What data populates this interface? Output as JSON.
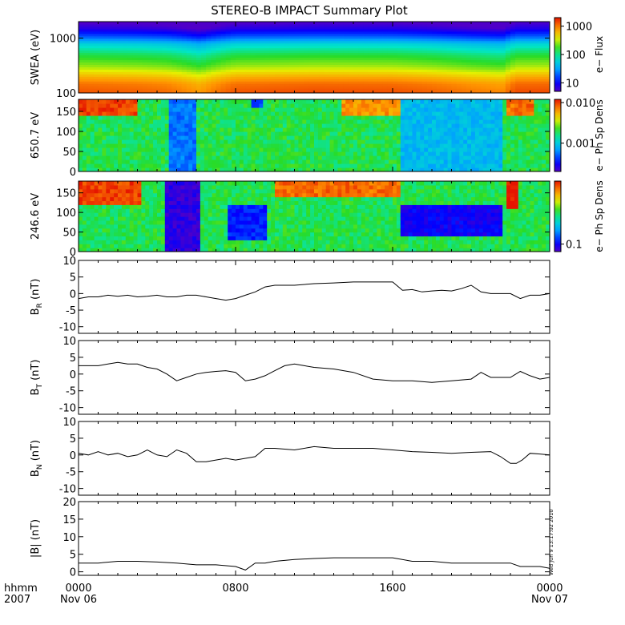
{
  "chart_data": {
    "title": "STEREO-B IMPACT Summary Plot",
    "x_axis": {
      "row_label": "hhmm",
      "year_label": "2007",
      "ticks": [
        {
          "time_hours": 0,
          "hhmm": "0000",
          "date": "Nov 06"
        },
        {
          "time_hours": 8,
          "hhmm": "0800",
          "date": ""
        },
        {
          "time_hours": 16,
          "hhmm": "1600",
          "date": ""
        },
        {
          "time_hours": 24,
          "hhmm": "0000",
          "date": "Nov 07"
        }
      ],
      "range_hours": [
        0,
        24
      ]
    },
    "timestamp": "Wed Jun 9 13:17:02 2010",
    "panels": [
      {
        "id": "swea",
        "type": "heatmap",
        "ylabel": "SWEA (eV)",
        "yscale": "log",
        "ylim": [
          100,
          2000
        ],
        "yticks": [
          {
            "v": 100,
            "label": "100"
          },
          {
            "v": 1000,
            "label": "1000"
          }
        ],
        "colorbar": {
          "label": "e− Flux",
          "scale": "log",
          "range": [
            5,
            2000
          ],
          "ticks": [
            {
              "v": 10,
              "label": "10"
            },
            {
              "v": 100,
              "label": "100"
            },
            {
              "v": 1000,
              "label": "1000"
            }
          ]
        },
        "mean_energy_profile": {
          "energy_ev": [
            100,
            150,
            200,
            300,
            500,
            800,
            1000,
            1500,
            2000
          ],
          "flux": [
            1400,
            1100,
            700,
            300,
            150,
            60,
            25,
            8,
            5
          ]
        },
        "time_intensity_factor": {
          "time_hours": [
            0,
            3,
            4.5,
            5.6,
            6.2,
            8,
            12,
            16,
            18,
            20,
            21.6,
            22.3,
            24
          ],
          "factor": [
            0.9,
            0.8,
            0.7,
            0.5,
            0.4,
            0.9,
            1.0,
            0.95,
            0.8,
            0.6,
            0.5,
            1.0,
            1.0
          ]
        }
      },
      {
        "id": "pad650",
        "type": "heatmap",
        "ylabel": "650.7 eV",
        "ylim": [
          0,
          180
        ],
        "yticks": [
          0,
          50,
          100,
          150
        ],
        "colorbar": {
          "label": "e− Ph Sp Dens",
          "scale": "log",
          "range": [
            0.0002,
            0.012
          ],
          "ticks": [
            {
              "v": 0.001,
              "label": "0.001"
            },
            {
              "v": 0.01,
              "label": "0.010"
            }
          ]
        },
        "features": [
          {
            "t0": 0,
            "t1": 3.0,
            "p0": 140,
            "p1": 180,
            "level": 0.95
          },
          {
            "t0": 4.6,
            "t1": 6.0,
            "p0": 0,
            "p1": 180,
            "level": 0.25
          },
          {
            "t0": 8.8,
            "t1": 9.3,
            "p0": 165,
            "p1": 180,
            "level": 0.2
          },
          {
            "t0": 13.5,
            "t1": 16.3,
            "p0": 140,
            "p1": 180,
            "level": 0.85
          },
          {
            "t0": 16.4,
            "t1": 21.5,
            "p0": 0,
            "p1": 180,
            "level": 0.35
          },
          {
            "t0": 21.9,
            "t1": 23.2,
            "p0": 140,
            "p1": 180,
            "level": 0.9
          }
        ]
      },
      {
        "id": "pad246",
        "type": "heatmap",
        "ylabel": "246.6 eV",
        "ylim": [
          0,
          180
        ],
        "yticks": [
          0,
          50,
          100,
          150
        ],
        "colorbar": {
          "label": "e− Ph Sp Dens",
          "scale": "log",
          "range": [
            0.07,
            2.0
          ],
          "ticks": [
            {
              "v": 0.1,
              "label": "0.1"
            }
          ]
        },
        "features": [
          {
            "t0": 0,
            "t1": 3.2,
            "p0": 120,
            "p1": 180,
            "level": 0.95
          },
          {
            "t0": 4.4,
            "t1": 6.2,
            "p0": 0,
            "p1": 180,
            "level": 0.05
          },
          {
            "t0": 7.6,
            "t1": 9.6,
            "p0": 30,
            "p1": 120,
            "level": 0.15
          },
          {
            "t0": 10.0,
            "t1": 16.3,
            "p0": 140,
            "p1": 180,
            "level": 0.9
          },
          {
            "t0": 16.4,
            "t1": 21.5,
            "p0": 40,
            "p1": 120,
            "level": 0.1
          },
          {
            "t0": 21.8,
            "t1": 22.4,
            "p0": 110,
            "p1": 180,
            "level": 1.0
          }
        ]
      },
      {
        "id": "br",
        "type": "line",
        "ylabel": "B",
        "ylabel_sub": "R",
        "ylabel_unit": "(nT)",
        "ylim": [
          -12,
          10
        ],
        "yticks": [
          -10,
          -5,
          0,
          5,
          10
        ],
        "x": [
          0,
          0.5,
          1,
          1.5,
          2,
          2.5,
          3,
          3.5,
          4,
          4.5,
          5,
          5.5,
          6,
          6.5,
          7,
          7.5,
          8,
          8.5,
          9,
          9.5,
          10,
          11,
          12,
          13,
          14,
          15,
          16,
          16.5,
          17,
          17.5,
          18,
          18.5,
          19,
          19.5,
          20,
          20.5,
          21,
          21.5,
          22,
          22.5,
          23,
          23.5,
          24
        ],
        "y": [
          -1.5,
          -1,
          -1,
          -0.5,
          -0.8,
          -0.5,
          -1,
          -0.8,
          -0.5,
          -1,
          -1,
          -0.5,
          -0.5,
          -1,
          -1.5,
          -2,
          -1.5,
          -0.5,
          0.5,
          2,
          2.5,
          2.5,
          3,
          3.2,
          3.5,
          3.5,
          3.5,
          1,
          1.2,
          0.5,
          0.8,
          1,
          0.8,
          1.5,
          2.5,
          0.5,
          0,
          0,
          0,
          -1.5,
          -0.5,
          -0.5,
          0
        ]
      },
      {
        "id": "bt",
        "type": "line",
        "ylabel": "B",
        "ylabel_sub": "T",
        "ylabel_unit": "(nT)",
        "ylim": [
          -12,
          10
        ],
        "yticks": [
          -10,
          -5,
          0,
          5,
          10
        ],
        "x": [
          0,
          0.5,
          1,
          1.5,
          2,
          2.5,
          3,
          3.5,
          4,
          4.5,
          5,
          5.5,
          6,
          6.5,
          7,
          7.5,
          8,
          8.5,
          9,
          9.5,
          10,
          10.5,
          11,
          11.5,
          12,
          13,
          14,
          15,
          16,
          17,
          18,
          19,
          20,
          20.5,
          21,
          21.5,
          22,
          22.5,
          23,
          23.5,
          24
        ],
        "y": [
          2.5,
          2.5,
          2.5,
          3,
          3.5,
          3,
          3,
          2,
          1.5,
          0,
          -2,
          -1,
          0,
          0.5,
          0.8,
          1,
          0.5,
          -2,
          -1.5,
          -0.5,
          1,
          2.5,
          3,
          2.5,
          2,
          1.5,
          0.5,
          -1.5,
          -2,
          -2,
          -2.5,
          -2,
          -1.5,
          0.5,
          -1,
          -1,
          -1,
          0.8,
          -0.5,
          -1.5,
          -1
        ]
      },
      {
        "id": "bn",
        "type": "line",
        "ylabel": "B",
        "ylabel_sub": "N",
        "ylabel_unit": "(nT)",
        "ylim": [
          -12,
          10
        ],
        "yticks": [
          -10,
          -5,
          0,
          5,
          10
        ],
        "x": [
          0,
          0.5,
          1,
          1.5,
          2,
          2.5,
          3,
          3.5,
          4,
          4.5,
          5,
          5.5,
          6,
          6.5,
          7,
          7.5,
          8,
          8.5,
          9,
          9.5,
          10,
          11,
          12,
          13,
          14,
          15,
          16,
          17,
          18,
          19,
          20,
          21,
          21.5,
          22,
          22.3,
          22.6,
          23,
          23.5,
          24
        ],
        "y": [
          0.5,
          0,
          1,
          0,
          0.5,
          -0.5,
          0,
          1.5,
          0,
          -0.5,
          1.5,
          0.5,
          -2,
          -2,
          -1.5,
          -1,
          -1.5,
          -1,
          -0.5,
          2,
          2,
          1.5,
          2.5,
          2,
          2,
          2,
          1.5,
          1,
          0.8,
          0.5,
          0.8,
          1,
          -0.5,
          -2.5,
          -2.5,
          -1.5,
          0.5,
          0.3,
          0
        ]
      },
      {
        "id": "bmag",
        "type": "line",
        "ylabel": "|B| (nT)",
        "ylim": [
          -1,
          20
        ],
        "yticks": [
          0,
          5,
          10,
          15,
          20
        ],
        "x": [
          0,
          1,
          2,
          3,
          4,
          5,
          6,
          7,
          8,
          8.5,
          9,
          9.5,
          10,
          11,
          12,
          13,
          14,
          15,
          16,
          17,
          18,
          19,
          20,
          21,
          22,
          22.5,
          23,
          23.5,
          24
        ],
        "y": [
          2.5,
          2.5,
          3,
          3,
          2.8,
          2.5,
          2,
          2,
          1.5,
          0.5,
          2.5,
          2.5,
          3,
          3.5,
          3.8,
          4,
          4,
          4,
          4,
          3,
          3,
          2.5,
          2.5,
          2.5,
          2.5,
          1.5,
          1.5,
          1.5,
          1
        ]
      }
    ]
  }
}
